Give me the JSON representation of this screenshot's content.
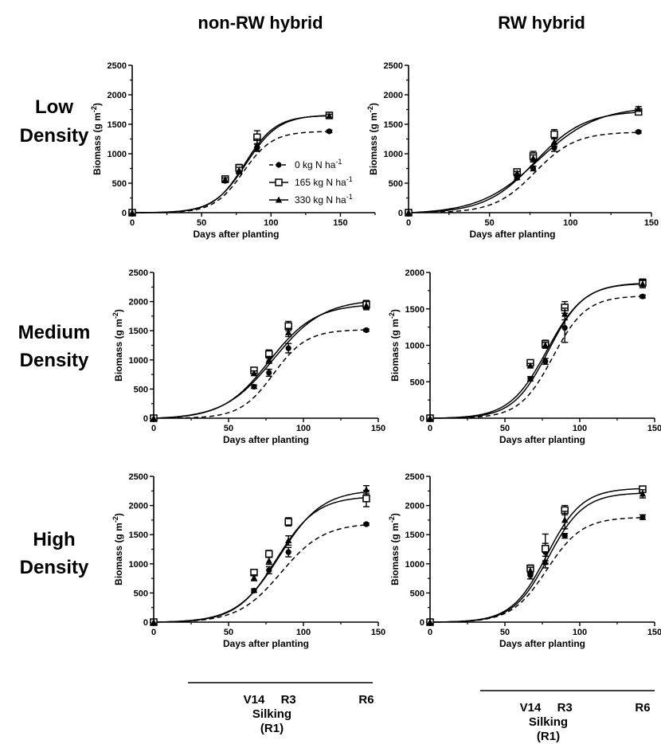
{
  "column_titles": [
    "non-RW hybrid",
    "RW hybrid"
  ],
  "row_labels": [
    [
      "Low",
      "Density"
    ],
    [
      "Medium",
      "Density"
    ],
    [
      "High",
      "Density"
    ]
  ],
  "legend": {
    "entries": [
      {
        "base": "0 kg N ha",
        "sup": "-1",
        "marker": "circle-filled",
        "line": "dashed"
      },
      {
        "base": "165 kg N ha",
        "sup": "-1",
        "marker": "square-open",
        "line": "solid"
      },
      {
        "base": "330 kg N ha",
        "sup": "-1",
        "marker": "triangle-filled",
        "line": "solid"
      }
    ]
  },
  "stage_axes": [
    {
      "labels": [
        "V14",
        "R3",
        "R6"
      ],
      "positions": [
        67,
        90,
        142
      ],
      "silking": [
        "Silking",
        "(R1)"
      ],
      "silking_pos": 79
    },
    {
      "labels": [
        "V14",
        "R3",
        "R6"
      ],
      "positions": [
        67,
        90,
        142
      ],
      "silking": [
        "Silking",
        "(R1)"
      ],
      "silking_pos": 79
    }
  ],
  "chart_data": [
    {
      "type": "line",
      "panel": "non-RW hybrid, Low Density",
      "xlabel": "Days after planting",
      "ylabel": "Biomass (g m^-2)",
      "xlim": [
        0,
        175
      ],
      "ylim": [
        0,
        2500
      ],
      "xticks": [
        0,
        50,
        100,
        150
      ],
      "yticks": [
        0,
        500,
        1000,
        1500,
        2000,
        2500
      ],
      "x": [
        0,
        67,
        77,
        90,
        142
      ],
      "series": [
        {
          "name": "0 kg N ha-1",
          "values": [
            0,
            540,
            700,
            1100,
            1380
          ],
          "err": [
            0,
            30,
            40,
            60,
            20
          ],
          "fit": {
            "max": 1380,
            "k": 0.095,
            "x0": 80
          }
        },
        {
          "name": "165 kg N ha-1",
          "values": [
            0,
            570,
            760,
            1280,
            1650
          ],
          "err": [
            0,
            30,
            60,
            110,
            30
          ],
          "fit": {
            "max": 1660,
            "k": 0.085,
            "x0": 82
          }
        },
        {
          "name": "330 kg N ha-1",
          "values": [
            0,
            560,
            720,
            1150,
            1640
          ],
          "err": [
            0,
            30,
            50,
            100,
            30
          ],
          "fit": {
            "max": 1650,
            "k": 0.09,
            "x0": 81
          }
        }
      ]
    },
    {
      "type": "line",
      "panel": "RW hybrid, Low Density",
      "xlabel": "Days after planting",
      "ylabel": "Biomass (g m^-2)",
      "xlim": [
        0,
        150
      ],
      "ylim": [
        0,
        2500
      ],
      "xticks": [
        0,
        50,
        100,
        150
      ],
      "yticks": [
        0,
        500,
        1000,
        1500,
        2000,
        2500
      ],
      "x": [
        0,
        67,
        77,
        90,
        142
      ],
      "series": [
        {
          "name": "0 kg N ha-1",
          "values": [
            0,
            590,
            750,
            1100,
            1370
          ],
          "err": [
            0,
            30,
            40,
            60,
            20
          ],
          "fit": {
            "max": 1370,
            "k": 0.08,
            "x0": 78
          }
        },
        {
          "name": "165 kg N ha-1",
          "values": [
            0,
            690,
            960,
            1330,
            1710
          ],
          "err": [
            0,
            30,
            80,
            80,
            40
          ],
          "fit": {
            "max": 1730,
            "k": 0.065,
            "x0": 78
          }
        },
        {
          "name": "330 kg N ha-1",
          "values": [
            0,
            670,
            920,
            1200,
            1760
          ],
          "err": [
            0,
            30,
            60,
            70,
            40
          ],
          "fit": {
            "max": 1800,
            "k": 0.055,
            "x0": 80
          }
        }
      ]
    },
    {
      "type": "line",
      "panel": "non-RW hybrid, Medium Density",
      "xlabel": "Days after planting",
      "ylabel": "Biomass (g m^-2)",
      "xlim": [
        0,
        150
      ],
      "ylim": [
        0,
        2500
      ],
      "xticks": [
        0,
        50,
        100,
        150
      ],
      "yticks": [
        0,
        500,
        1000,
        1500,
        2000,
        2500
      ],
      "x": [
        0,
        67,
        77,
        90,
        142
      ],
      "series": [
        {
          "name": "0 kg N ha-1",
          "values": [
            0,
            540,
            780,
            1200,
            1510
          ],
          "err": [
            0,
            30,
            60,
            80,
            20
          ],
          "fit": {
            "max": 1520,
            "k": 0.09,
            "x0": 80
          }
        },
        {
          "name": "165 kg N ha-1",
          "values": [
            0,
            820,
            1100,
            1580,
            1950
          ],
          "err": [
            0,
            50,
            70,
            80,
            70
          ],
          "fit": {
            "max": 1960,
            "k": 0.065,
            "x0": 77
          }
        },
        {
          "name": "330 kg N ha-1",
          "values": [
            0,
            770,
            1000,
            1470,
            1930
          ],
          "err": [
            0,
            40,
            60,
            70,
            70
          ],
          "fit": {
            "max": 2040,
            "k": 0.06,
            "x0": 80
          }
        }
      ]
    },
    {
      "type": "line",
      "panel": "RW hybrid, Medium Density",
      "xlabel": "Days after planting",
      "ylabel": "Biomass (g m^-2)",
      "xlim": [
        0,
        150
      ],
      "ylim": [
        0,
        2000
      ],
      "xticks": [
        0,
        50,
        100,
        150
      ],
      "yticks": [
        0,
        500,
        1000,
        1500,
        2000
      ],
      "x": [
        0,
        67,
        77,
        90,
        142
      ],
      "series": [
        {
          "name": "0 kg N ha-1",
          "values": [
            0,
            540,
            780,
            1240,
            1670
          ],
          "err": [
            0,
            30,
            40,
            200,
            20
          ],
          "fit": {
            "max": 1680,
            "k": 0.09,
            "x0": 82
          }
        },
        {
          "name": "165 kg N ha-1",
          "values": [
            0,
            760,
            1020,
            1520,
            1860
          ],
          "err": [
            0,
            40,
            50,
            80,
            50
          ],
          "fit": {
            "max": 1860,
            "k": 0.08,
            "x0": 78
          }
        },
        {
          "name": "330 kg N ha-1",
          "values": [
            0,
            720,
            1000,
            1430,
            1840
          ],
          "err": [
            0,
            30,
            40,
            80,
            50
          ],
          "fit": {
            "max": 1850,
            "k": 0.085,
            "x0": 79
          }
        }
      ]
    },
    {
      "type": "line",
      "panel": "non-RW hybrid, High Density",
      "xlabel": "Days after planting",
      "ylabel": "Biomass (g m^-2)",
      "xlim": [
        0,
        150
      ],
      "ylim": [
        0,
        2500
      ],
      "xticks": [
        0,
        50,
        100,
        150
      ],
      "yticks": [
        0,
        500,
        1000,
        1500,
        2000,
        2500
      ],
      "x": [
        0,
        67,
        77,
        90,
        142
      ],
      "series": [
        {
          "name": "0 kg N ha-1",
          "values": [
            0,
            540,
            890,
            1200,
            1680
          ],
          "err": [
            0,
            30,
            60,
            80,
            20
          ],
          "fit": {
            "max": 1700,
            "k": 0.07,
            "x0": 85
          }
        },
        {
          "name": "165 kg N ha-1",
          "values": [
            0,
            850,
            1170,
            1720,
            2120
          ],
          "err": [
            0,
            40,
            60,
            70,
            140
          ],
          "fit": {
            "max": 2160,
            "k": 0.075,
            "x0": 82
          }
        },
        {
          "name": "330 kg N ha-1",
          "values": [
            0,
            760,
            1050,
            1400,
            2270
          ],
          "err": [
            0,
            50,
            60,
            80,
            70
          ],
          "fit": {
            "max": 2270,
            "k": 0.07,
            "x0": 84
          }
        }
      ]
    },
    {
      "type": "line",
      "panel": "RW hybrid, High Density",
      "xlabel": "Days after planting",
      "ylabel": "Biomass (g m^-2)",
      "xlim": [
        0,
        150
      ],
      "ylim": [
        0,
        2500
      ],
      "xticks": [
        0,
        50,
        100,
        150
      ],
      "yticks": [
        0,
        500,
        1000,
        1500,
        2000,
        2500
      ],
      "x": [
        0,
        67,
        77,
        90,
        142
      ],
      "series": [
        {
          "name": "0 kg N ha-1",
          "values": [
            0,
            800,
            1200,
            1480,
            1800
          ],
          "err": [
            0,
            60,
            150,
            40,
            40
          ],
          "fit": {
            "max": 1800,
            "k": 0.085,
            "x0": 78
          }
        },
        {
          "name": "165 kg N ha-1",
          "values": [
            0,
            920,
            1260,
            1920,
            2280
          ],
          "err": [
            0,
            60,
            250,
            80,
            40
          ],
          "fit": {
            "max": 2300,
            "k": 0.085,
            "x0": 78
          }
        },
        {
          "name": "330 kg N ha-1",
          "values": [
            0,
            880,
            1030,
            1750,
            2200
          ],
          "err": [
            0,
            60,
            100,
            150,
            70
          ],
          "fit": {
            "max": 2220,
            "k": 0.085,
            "x0": 79
          }
        }
      ]
    }
  ]
}
